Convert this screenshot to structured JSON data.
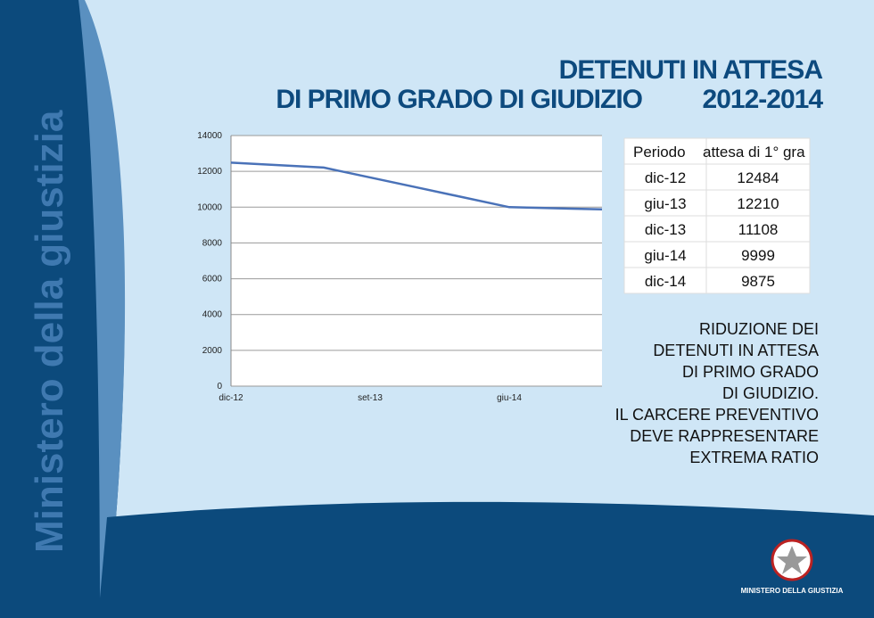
{
  "slide": {
    "side_title": "Ministero della giustizia",
    "title_lines": [
      "DETENUTI IN ATTESA",
      "DI PRIMO GRADO DI GIUDIZIO",
      "2012-2014"
    ],
    "note_lines": [
      "RIDUZIONE DEI",
      "DETENUTI IN ATTESA",
      "DI PRIMO GRADO",
      "DI GIUDIZIO.",
      "IL CARCERE PREVENTIVO",
      "DEVE RAPPRESENTARE",
      "EXTREMA RATIO"
    ],
    "footer": "MINISTERO DELLA GIUSTIZIA"
  },
  "table": {
    "header": [
      "Periodo",
      "attesa di 1° gra"
    ],
    "rows": [
      [
        "dic-12",
        "12484"
      ],
      [
        "giu-13",
        "12210"
      ],
      [
        "dic-13",
        "11108"
      ],
      [
        "giu-14",
        "9999"
      ],
      [
        "dic-14",
        "9875"
      ]
    ]
  },
  "chart_data": {
    "type": "line",
    "x": [
      "dic-12",
      "giu-13",
      "dic-13",
      "giu-14",
      "dic-14"
    ],
    "series": [
      {
        "name": "attesa di 1° gra",
        "color": "#4a72b8",
        "values": [
          12484,
          12210,
          11108,
          9999,
          9875
        ]
      }
    ],
    "xlim": [
      "dic-12",
      "dic-14"
    ],
    "xticks": [
      "dic-12",
      "set-13",
      "giu-14"
    ],
    "ylim": [
      0,
      14000
    ],
    "yticks": [
      0,
      2000,
      4000,
      6000,
      8000,
      10000,
      12000,
      14000
    ],
    "grid": true
  }
}
